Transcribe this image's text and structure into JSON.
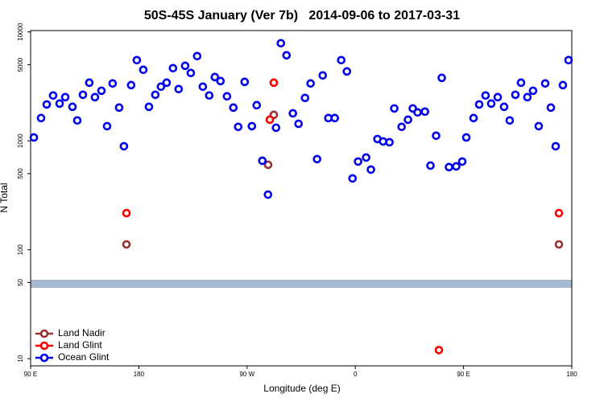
{
  "chart_data": {
    "type": "scatter",
    "title": "50S-45S January (Ver 7b)   2014-09-06 to 2017-03-31",
    "x_label": "Longitude (deg E)",
    "y_label": "N Total",
    "xlim": [
      90,
      540
    ],
    "xticks": [
      {
        "value": 90,
        "label": "90 E"
      },
      180,
      {
        "value": 270,
        "label": "90 W"
      },
      {
        "value": 360,
        "label": "0"
      },
      {
        "value": 450,
        "label": "90 E"
      },
      {
        "value": 540,
        "label": "180"
      }
    ],
    "ylim": [
      8.6,
      10300
    ],
    "log_y": true,
    "yticks": [
      10,
      50,
      100,
      500,
      1000,
      5000,
      10000
    ],
    "legend": "bottom-left",
    "series": [
      {
        "name": "Land Nadir",
        "color": "#993333",
        "x": [
          169.7,
          287.5,
          292.2,
          529.3
        ],
        "values": [
          112,
          603,
          1733,
          112
        ]
      },
      {
        "name": "Land Glint",
        "color": "#ff0000",
        "x": [
          169.7,
          288.9,
          292.2,
          429.5,
          529.3
        ],
        "values": [
          217,
          1565,
          3420,
          12,
          217
        ]
      },
      {
        "name": "Ocean Glint",
        "color": "#0000ee",
        "x": [
          92.7,
          98.7,
          103.4,
          108.7,
          114.1,
          118.8,
          124.8,
          128.8,
          133.5,
          138.8,
          143.5,
          148.9,
          153.6,
          158.2,
          163.6,
          167.6,
          173.6,
          178.3,
          183.7,
          188.4,
          193.7,
          198.4,
          203.1,
          208.4,
          213.1,
          218.5,
          223.2,
          228.5,
          233.2,
          238.5,
          243.2,
          247.9,
          253.3,
          258.6,
          262.6,
          268.0,
          274.0,
          278.0,
          282.7,
          287.4,
          294.1,
          298.1,
          302.8,
          308.1,
          312.8,
          318.2,
          322.8,
          328.2,
          332.9,
          337.6,
          342.9,
          348.3,
          353.0,
          357.7,
          362.3,
          369.0,
          373.0,
          378.4,
          383.1,
          388.4,
          392.4,
          398.5,
          403.8,
          407.8,
          411.8,
          417.9,
          422.5,
          427.2,
          431.9,
          437.9,
          443.9,
          448.9,
          452.3,
          458.3,
          463.0,
          468.3,
          473.0,
          478.4,
          483.7,
          488.4,
          493.1,
          497.8,
          503.1,
          507.8,
          512.5,
          517.9,
          522.6,
          526.6,
          532.6,
          537.3
        ],
        "values": [
          1075,
          1620,
          2160,
          2610,
          2200,
          2520,
          2055,
          1540,
          2650,
          3420,
          2520,
          2885,
          1365,
          3365,
          2020,
          892,
          3250,
          5510,
          4495,
          2055,
          2650,
          3145,
          3420,
          4650,
          2990,
          4890,
          4200,
          6000,
          3145,
          2610,
          3855,
          3540,
          2565,
          2020,
          1345,
          3480,
          1365,
          2125,
          657,
          321,
          1320,
          7880,
          6105,
          1790,
          1435,
          2480,
          3365,
          680,
          3990,
          1620,
          1620,
          5510,
          4340,
          452,
          646,
          703,
          545,
          1040,
          988,
          971,
          1985,
          1345,
          1565,
          1985,
          1825,
          1855,
          593,
          1115,
          3790,
          574,
          583,
          646,
          1075,
          1620,
          2160,
          2610,
          2200,
          2520,
          2055,
          1540,
          2650,
          3420,
          2520,
          2885,
          1365,
          3365,
          2020,
          892,
          3250,
          5510
        ]
      }
    ]
  }
}
